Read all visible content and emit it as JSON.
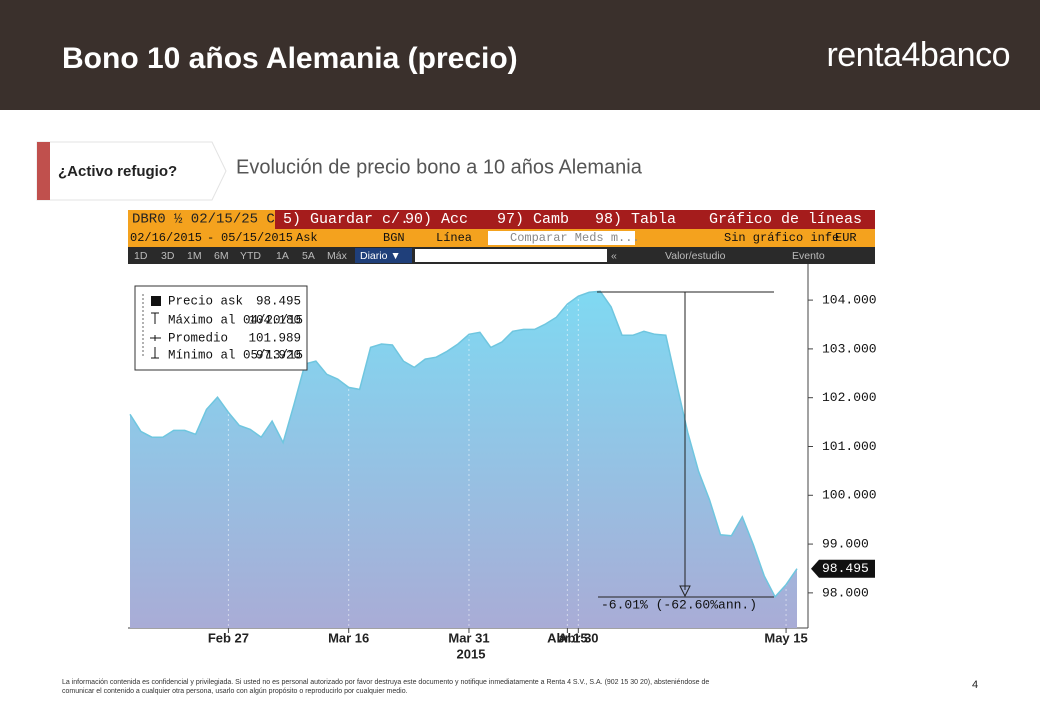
{
  "header": {
    "title": "Bono 10 años Alemania (precio)",
    "logo": "renta4banco"
  },
  "tag": "¿Activo refugio?",
  "subtitle": "Evolución de precio bono a 10 años Alemania",
  "toolbar": {
    "row1": [
      "DBR0 ½ 02/15/25 C",
      "5) Guardar c/.",
      "90) Acc",
      "97) Camb",
      "98) Tabla",
      "Gráfico de líneas"
    ],
    "row2": [
      "02/16/2015",
      "-",
      "05/15/2015",
      "Ask",
      "BGN",
      "Línea",
      "Comparar Meds m...",
      "Sin gráfico infe",
      "EUR"
    ],
    "row3": [
      "1D",
      "3D",
      "1M",
      "6M",
      "YTD",
      "1A",
      "5A",
      "Máx",
      "Diario ▼",
      "«",
      "Valor/estudio",
      "Evento"
    ]
  },
  "chart_data": {
    "type": "area",
    "categories": [
      null,
      null,
      null,
      null,
      null,
      null,
      null,
      null,
      null,
      "Feb 27",
      null,
      null,
      null,
      null,
      null,
      null,
      null,
      null,
      null,
      null,
      "Mar 16",
      null,
      null,
      null,
      null,
      null,
      null,
      null,
      null,
      null,
      null,
      "Mar 31",
      null,
      null,
      null,
      null,
      null,
      null,
      null,
      null,
      "Abr 15",
      "Abr 30",
      null,
      null,
      null,
      null,
      null,
      null,
      null,
      null,
      null,
      null,
      null,
      null,
      null,
      null,
      null,
      null,
      null,
      null,
      "May 15",
      null
    ],
    "values": [
      101.66,
      101.31,
      101.19,
      101.19,
      101.33,
      101.33,
      101.25,
      101.76,
      102.01,
      101.7,
      101.43,
      101.35,
      101.19,
      101.52,
      101.08,
      101.86,
      102.69,
      102.75,
      102.48,
      102.38,
      102.21,
      102.17,
      103.03,
      103.1,
      103.08,
      102.75,
      102.62,
      102.79,
      102.83,
      102.95,
      103.1,
      103.3,
      103.34,
      103.03,
      103.14,
      103.36,
      103.4,
      103.4,
      103.51,
      103.65,
      103.92,
      104.08,
      104.16,
      104.18,
      103.86,
      103.28,
      103.28,
      103.36,
      103.3,
      103.28,
      102.28,
      101.29,
      100.49,
      99.91,
      99.19,
      99.17,
      99.56,
      98.99,
      98.35,
      97.92,
      98.17,
      98.495
    ],
    "x_year": "2015",
    "ylim": [
      97.28,
      104.74
    ],
    "yticks": [
      {
        "value": 98,
        "label": "98.000"
      },
      {
        "value": 99,
        "label": "99.000"
      },
      {
        "value": 100,
        "label": "100.000"
      },
      {
        "value": 101,
        "label": "101.000"
      },
      {
        "value": 102,
        "label": "102.000"
      },
      {
        "value": 103,
        "label": "103.000"
      },
      {
        "value": 104,
        "label": "104.000"
      }
    ],
    "grid": true,
    "color_top": "#7fd9f2",
    "color_bottom": "#a9acd6",
    "stats": [
      {
        "label": "Precio ask",
        "value": "98.495"
      },
      {
        "label": "Máximo al 04/20/15",
        "value": "104.180"
      },
      {
        "label": "Promedio",
        "value": "101.989"
      },
      {
        "label": "Mínimo al 05/13/15",
        "value": "97.920"
      }
    ],
    "annotation": "-6.01% (-62.60%ann.)"
  },
  "footer": {
    "disclaimer": [
      "La información contenida es confidencial y privilegiada. Si usted no es personal autorizado por favor destruya este documento y notifique inmediatamente a Renta 4 S.V., S.A. (902 15 30 20), absteniéndose de",
      "comunicar el contenido a cualquier otra persona, usarlo con algún propósito o reproducirlo por cualquier medio."
    ],
    "page": "4"
  }
}
